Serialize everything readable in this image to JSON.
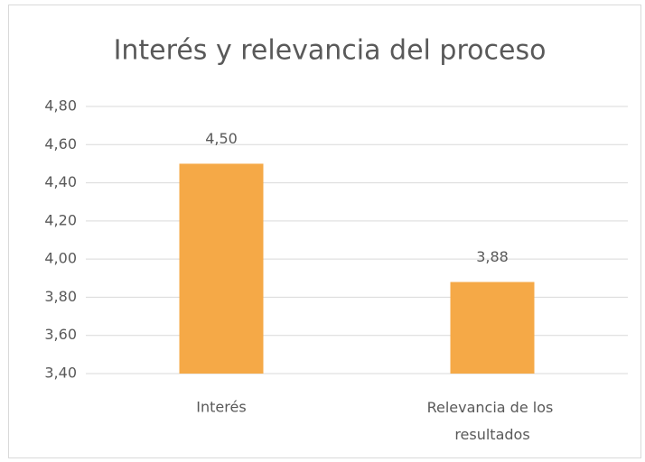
{
  "chart_data": {
    "type": "bar",
    "title": "Interés y relevancia del proceso",
    "categories": [
      "Interés",
      "Relevancia de los resultados"
    ],
    "values": [
      4.5,
      3.88
    ],
    "value_labels": [
      "4,50",
      "3,88"
    ],
    "color": "#f5a947",
    "ylim": [
      3.4,
      4.8
    ],
    "yticks": [
      {
        "value": 3.4,
        "label": "3,40"
      },
      {
        "value": 3.6,
        "label": "3,60"
      },
      {
        "value": 3.8,
        "label": "3,80"
      },
      {
        "value": 4.0,
        "label": "4,00"
      },
      {
        "value": 4.2,
        "label": "4,20"
      },
      {
        "value": 4.4,
        "label": "4,40"
      },
      {
        "value": 4.6,
        "label": "4,60"
      },
      {
        "value": 4.8,
        "label": "4,80"
      }
    ],
    "grid": true
  }
}
